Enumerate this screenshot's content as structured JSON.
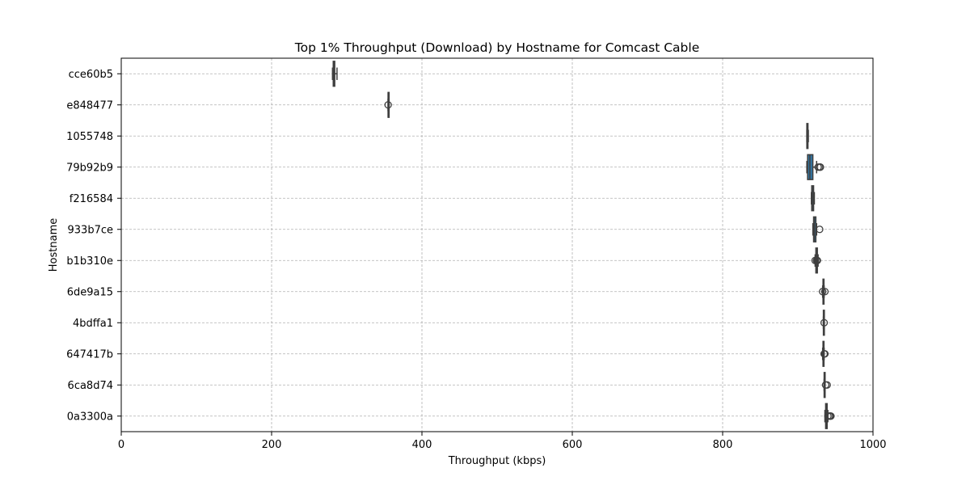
{
  "chart_data": {
    "type": "boxplot",
    "orientation": "horizontal",
    "title": "Top 1% Throughput (Download) by Hostname for Comcast Cable",
    "xlabel": "Throughput (kbps)",
    "ylabel": "Hostname",
    "xlim": [
      0,
      1000
    ],
    "xticks": [
      0,
      200,
      400,
      600,
      800,
      1000
    ],
    "grid": true,
    "box_color": "#3274a1",
    "categories": [
      "cce60b5",
      "e848477",
      "1055748",
      "79b92b9",
      "f216584",
      "933b7ce",
      "b1b310e",
      "6de9a15",
      "4bdffa1",
      "647417b",
      "6ca8d74",
      "0a3300a"
    ],
    "boxes": [
      {
        "label": "cce60b5",
        "min": 281,
        "q1": 282,
        "median": 283,
        "q3": 284,
        "max": 287,
        "outliers": []
      },
      {
        "label": "e848477",
        "min": 355,
        "q1": 355,
        "median": 355,
        "q3": 355,
        "max": 355,
        "outliers": [
          355
        ]
      },
      {
        "label": "1055748",
        "min": 912,
        "q1": 912,
        "median": 913,
        "q3": 913.5,
        "max": 914,
        "outliers": []
      },
      {
        "label": "79b92b9",
        "min": 912,
        "q1": 913,
        "median": 916,
        "q3": 920,
        "max": 925,
        "outliers": [
          927,
          929,
          930
        ]
      },
      {
        "label": "f216584",
        "min": 918,
        "q1": 918.5,
        "median": 919.5,
        "q3": 921,
        "max": 922,
        "outliers": []
      },
      {
        "label": "933b7ce",
        "min": 920,
        "q1": 921,
        "median": 922,
        "q3": 924,
        "max": 925,
        "outliers": [
          929
        ]
      },
      {
        "label": "b1b310e",
        "min": 923,
        "q1": 924,
        "median": 925,
        "q3": 926,
        "max": 927,
        "outliers": [
          923,
          925,
          926
        ]
      },
      {
        "label": "6de9a15",
        "min": 933,
        "q1": 933.5,
        "median": 934,
        "q3": 934.5,
        "max": 935,
        "outliers": [
          933,
          936
        ]
      },
      {
        "label": "4bdffa1",
        "min": 934,
        "q1": 934,
        "median": 934.5,
        "q3": 935,
        "max": 935,
        "outliers": [
          935
        ]
      },
      {
        "label": "647417b",
        "min": 933,
        "q1": 933.5,
        "median": 934,
        "q3": 934.5,
        "max": 935,
        "outliers": [
          935,
          936
        ]
      },
      {
        "label": "6ca8d74",
        "min": 935,
        "q1": 935,
        "median": 935.5,
        "q3": 936,
        "max": 936,
        "outliers": [
          937,
          939
        ]
      },
      {
        "label": "0a3300a",
        "min": 936,
        "q1": 937,
        "median": 938,
        "q3": 939,
        "max": 940,
        "outliers": [
          940,
          942,
          943,
          944
        ]
      }
    ]
  }
}
